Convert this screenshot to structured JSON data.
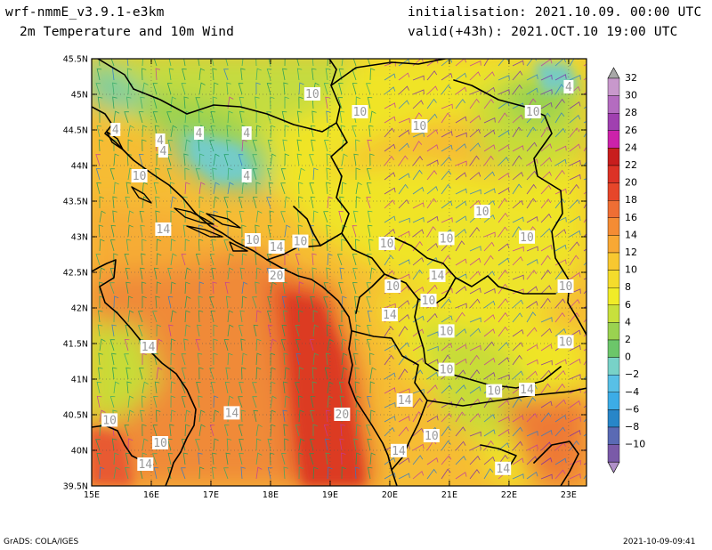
{
  "header": {
    "model": "wrf-nmmE_v3.9.1-e3km",
    "field": "2m Temperature and 10m Wind",
    "init": "initialisation: 2021.10.09. 00:00 UTC",
    "valid": "valid(+43h): 2021.OCT.10 19:00 UTC"
  },
  "map": {
    "lat_ticks": [
      "45.5N",
      "45N",
      "44.5N",
      "44N",
      "43.5N",
      "43N",
      "42.5N",
      "42N",
      "41.5N",
      "41N",
      "40.5N",
      "40N",
      "39.5N"
    ],
    "lon_ticks": [
      "15E",
      "16E",
      "17E",
      "18E",
      "19E",
      "20E",
      "21E",
      "22E",
      "23E"
    ],
    "extent": {
      "lon_min": 15,
      "lon_max": 23.3,
      "lat_min": 39.5,
      "lat_max": 45.5
    },
    "contour_labels": [
      {
        "text": "10",
        "lon": 18.7,
        "lat": 45.0
      },
      {
        "text": "10",
        "lon": 19.5,
        "lat": 44.75
      },
      {
        "text": "10",
        "lon": 20.5,
        "lat": 44.55
      },
      {
        "text": "10",
        "lon": 22.4,
        "lat": 44.75
      },
      {
        "text": "4",
        "lon": 23.0,
        "lat": 45.1
      },
      {
        "text": "4",
        "lon": 15.4,
        "lat": 44.5
      },
      {
        "text": "4",
        "lon": 16.15,
        "lat": 44.35
      },
      {
        "text": "4",
        "lon": 16.2,
        "lat": 44.2
      },
      {
        "text": "4",
        "lon": 16.8,
        "lat": 44.45
      },
      {
        "text": "4",
        "lon": 17.6,
        "lat": 44.45
      },
      {
        "text": "4",
        "lon": 17.6,
        "lat": 43.85
      },
      {
        "text": "10",
        "lon": 15.8,
        "lat": 43.85
      },
      {
        "text": "10",
        "lon": 21.55,
        "lat": 43.35
      },
      {
        "text": "14",
        "lon": 16.2,
        "lat": 43.1
      },
      {
        "text": "10",
        "lon": 17.7,
        "lat": 42.95
      },
      {
        "text": "14",
        "lon": 18.1,
        "lat": 42.85
      },
      {
        "text": "10",
        "lon": 18.5,
        "lat": 42.93
      },
      {
        "text": "10",
        "lon": 19.95,
        "lat": 42.9
      },
      {
        "text": "10",
        "lon": 20.95,
        "lat": 42.97
      },
      {
        "text": "10",
        "lon": 22.3,
        "lat": 42.99
      },
      {
        "text": "20",
        "lon": 18.1,
        "lat": 42.45
      },
      {
        "text": "14",
        "lon": 20.8,
        "lat": 42.45
      },
      {
        "text": "10",
        "lon": 20.05,
        "lat": 42.3
      },
      {
        "text": "10",
        "lon": 22.95,
        "lat": 42.3
      },
      {
        "text": "10",
        "lon": 20.65,
        "lat": 42.1
      },
      {
        "text": "14",
        "lon": 20.0,
        "lat": 41.9
      },
      {
        "text": "10",
        "lon": 20.95,
        "lat": 41.67
      },
      {
        "text": "14",
        "lon": 15.95,
        "lat": 41.45
      },
      {
        "text": "10",
        "lon": 22.95,
        "lat": 41.52
      },
      {
        "text": "10",
        "lon": 20.95,
        "lat": 41.13
      },
      {
        "text": "10",
        "lon": 21.75,
        "lat": 40.83
      },
      {
        "text": "14",
        "lon": 22.3,
        "lat": 40.85
      },
      {
        "text": "14",
        "lon": 20.25,
        "lat": 40.7
      },
      {
        "text": "14",
        "lon": 17.35,
        "lat": 40.52
      },
      {
        "text": "20",
        "lon": 19.2,
        "lat": 40.5
      },
      {
        "text": "10",
        "lon": 15.3,
        "lat": 40.42
      },
      {
        "text": "10",
        "lon": 20.7,
        "lat": 40.2
      },
      {
        "text": "10",
        "lon": 16.15,
        "lat": 40.1
      },
      {
        "text": "14",
        "lon": 20.15,
        "lat": 39.99
      },
      {
        "text": "14",
        "lon": 15.9,
        "lat": 39.8
      },
      {
        "text": "14",
        "lon": 21.9,
        "lat": 39.74
      }
    ]
  },
  "colorbar": {
    "labels": [
      "32",
      "30",
      "28",
      "26",
      "24",
      "22",
      "20",
      "18",
      "16",
      "14",
      "12",
      "10",
      "8",
      "6",
      "4",
      "2",
      "0",
      "−2",
      "−4",
      "−6",
      "−8",
      "−10"
    ],
    "colors": [
      "#c898cc",
      "#b46cc0",
      "#a040b0",
      "#cc22aa",
      "#c81e1e",
      "#dc3226",
      "#e6462a",
      "#ee6e34",
      "#f48c34",
      "#f8a834",
      "#f8c830",
      "#f4dc2c",
      "#f0ec28",
      "#c8e03c",
      "#9ad250",
      "#6cc66a",
      "#78d2c8",
      "#58c0e6",
      "#3cace6",
      "#2886c8",
      "#5a6ab4",
      "#7a5aa8"
    ]
  },
  "footer": {
    "left": "GrADS: COLA/IGES",
    "right": "2021-10-09-09:41"
  }
}
